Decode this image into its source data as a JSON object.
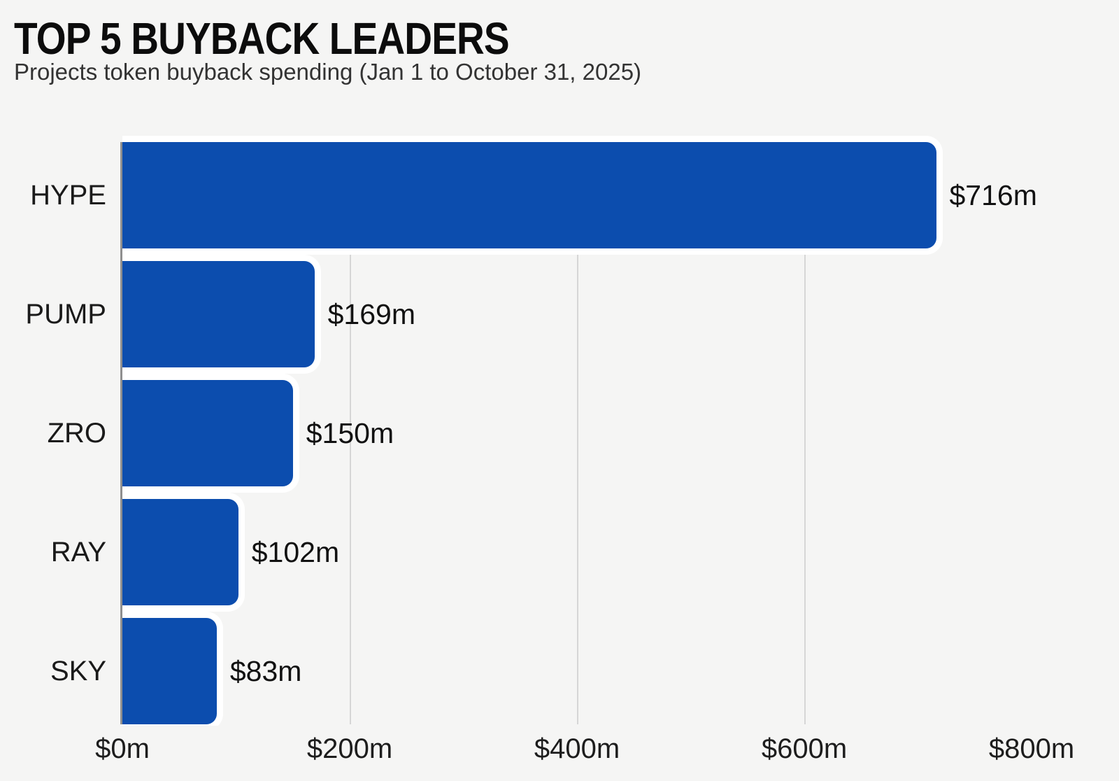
{
  "header": {
    "title": "TOP 5 BUYBACK LEADERS",
    "subtitle": "Projects token buyback spending (Jan 1 to October 31, 2025)"
  },
  "chart_data": {
    "type": "bar",
    "orientation": "horizontal",
    "title": "TOP 5 BUYBACK LEADERS",
    "subtitle": "Projects token buyback spending (Jan 1 to October 31, 2025)",
    "categories": [
      "HYPE",
      "PUMP",
      "ZRO",
      "RAY",
      "SKY"
    ],
    "values": [
      716,
      169,
      150,
      102,
      83
    ],
    "value_labels": [
      "$716m",
      "$169m",
      "$150m",
      "$102m",
      "$83m"
    ],
    "value_unit": "million USD",
    "xlim": [
      0,
      800
    ],
    "x_ticks": [
      {
        "value": 0,
        "label": "$0m"
      },
      {
        "value": 200,
        "label": "$200m"
      },
      {
        "value": 400,
        "label": "$400m"
      },
      {
        "value": 600,
        "label": "$600m"
      },
      {
        "value": 800,
        "label": "$800m"
      }
    ],
    "gridline_values": [
      200,
      400,
      600
    ],
    "legend": "none",
    "colors": {
      "bar": "#0c4dae",
      "bar_halo": "#ffffff",
      "background": "#f5f5f4",
      "gridline": "#d6d6d6",
      "axis_line": "#8f8f8f",
      "title": "#0c0c0c",
      "subtitle": "#333333",
      "category_label": "#1a1a1a",
      "value_label": "#111111"
    }
  }
}
